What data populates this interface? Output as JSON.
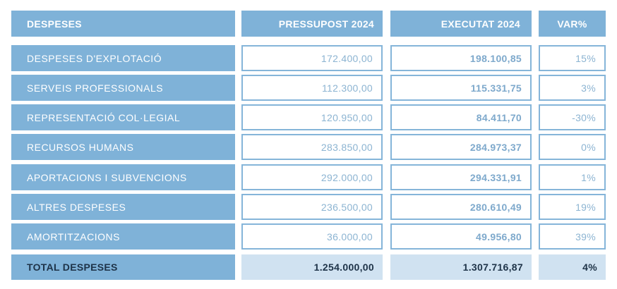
{
  "table": {
    "headers": {
      "concept": "DESPESES",
      "budget": "PRESSUPOST 2024",
      "executed": "EXECUTAT 2024",
      "variance": "VAR%"
    },
    "rows": [
      {
        "concept": "DESPESES D'EXPLOTACIÓ",
        "budget": "172.400,00",
        "executed": "198.100,85",
        "variance": "15%"
      },
      {
        "concept": "SERVEIS PROFESSIONALS",
        "budget": "112.300,00",
        "executed": "115.331,75",
        "variance": "3%"
      },
      {
        "concept": " REPRESENTACIÓ COL·LEGIAL",
        "budget": "120.950,00",
        "executed": "84.411,70",
        "variance": "-30%"
      },
      {
        "concept": "RECURSOS HUMANS",
        "budget": "283.850,00",
        "executed": "284.973,37",
        "variance": "0%"
      },
      {
        "concept": "APORTACIONS I SUBVENCIONS",
        "budget": "292.000,00",
        "executed": "294.331,91",
        "variance": "1%"
      },
      {
        "concept": "ALTRES DESPESES",
        "budget": "236.500,00",
        "executed": "280.610,49",
        "variance": "19%"
      },
      {
        "concept": "AMORTITZACIONS",
        "budget": "36.000,00",
        "executed": "49.956,80",
        "variance": "39%"
      }
    ],
    "total": {
      "concept": "TOTAL DESPESES",
      "budget": "1.254.000,00",
      "executed": "1.307.716,87",
      "variance": "4%"
    }
  }
}
